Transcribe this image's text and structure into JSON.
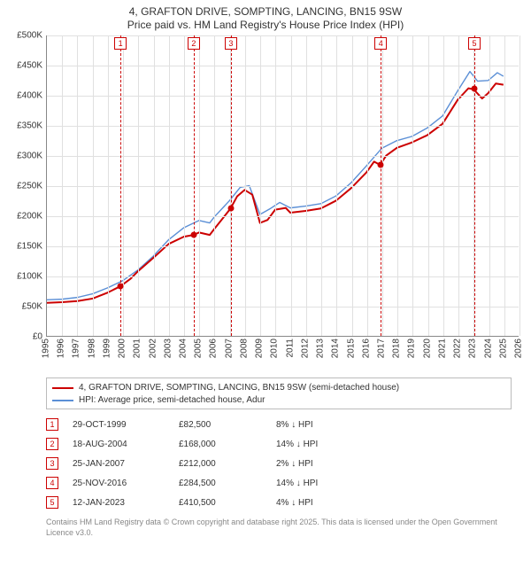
{
  "title_line1": "4, GRAFTON DRIVE, SOMPTING, LANCING, BN15 9SW",
  "title_line2": "Price paid vs. HM Land Registry's House Price Index (HPI)",
  "chart": {
    "x_min": 1995,
    "x_max": 2026,
    "x_ticks": [
      1995,
      1996,
      1997,
      1998,
      1999,
      2000,
      2001,
      2002,
      2003,
      2004,
      2005,
      2006,
      2007,
      2008,
      2009,
      2010,
      2011,
      2012,
      2013,
      2014,
      2015,
      2016,
      2017,
      2018,
      2019,
      2020,
      2021,
      2022,
      2023,
      2024,
      2025,
      2026
    ],
    "y_min": 0,
    "y_max": 500,
    "y_ticks": [
      0,
      50,
      100,
      150,
      200,
      250,
      300,
      350,
      400,
      450,
      500
    ],
    "y_tick_labels": [
      "£0",
      "£50K",
      "£100K",
      "£150K",
      "£200K",
      "£250K",
      "£300K",
      "£350K",
      "£400K",
      "£450K",
      "£500K"
    ],
    "grid_color": "#e0e0e0",
    "axis_color": "#888888",
    "background_color": "#ffffff",
    "series": {
      "property": {
        "color": "#cc0000",
        "width": 2.0,
        "points": [
          [
            1995.0,
            55
          ],
          [
            1996.0,
            56
          ],
          [
            1997.0,
            58
          ],
          [
            1998.0,
            62
          ],
          [
            1999.0,
            72
          ],
          [
            1999.83,
            82.5
          ],
          [
            2000.5,
            95
          ],
          [
            2001.0,
            108
          ],
          [
            2002.0,
            130
          ],
          [
            2003.0,
            153
          ],
          [
            2004.0,
            165
          ],
          [
            2004.63,
            168
          ],
          [
            2005.0,
            172
          ],
          [
            2005.7,
            168
          ],
          [
            2006.0,
            178
          ],
          [
            2006.7,
            200
          ],
          [
            2007.07,
            212
          ],
          [
            2007.5,
            232
          ],
          [
            2008.0,
            243
          ],
          [
            2008.5,
            235
          ],
          [
            2009.0,
            188
          ],
          [
            2009.5,
            193
          ],
          [
            2010.0,
            210
          ],
          [
            2010.7,
            213
          ],
          [
            2011.0,
            205
          ],
          [
            2012.0,
            208
          ],
          [
            2013.0,
            212
          ],
          [
            2014.0,
            225
          ],
          [
            2015.0,
            246
          ],
          [
            2016.0,
            272
          ],
          [
            2016.5,
            290
          ],
          [
            2016.9,
            284.5
          ],
          [
            2017.3,
            300
          ],
          [
            2018.0,
            313
          ],
          [
            2019.0,
            322
          ],
          [
            2020.0,
            334
          ],
          [
            2021.0,
            353
          ],
          [
            2022.0,
            393
          ],
          [
            2022.7,
            412
          ],
          [
            2023.04,
            410.5
          ],
          [
            2023.6,
            395
          ],
          [
            2024.0,
            404
          ],
          [
            2024.5,
            420
          ],
          [
            2025.0,
            418
          ]
        ]
      },
      "hpi": {
        "color": "#5b8fd6",
        "width": 1.4,
        "points": [
          [
            1995.0,
            60
          ],
          [
            1996.0,
            61
          ],
          [
            1997.0,
            64
          ],
          [
            1998.0,
            70
          ],
          [
            1999.0,
            80
          ],
          [
            2000.0,
            92
          ],
          [
            2001.0,
            110
          ],
          [
            2002.0,
            133
          ],
          [
            2003.0,
            160
          ],
          [
            2004.0,
            180
          ],
          [
            2005.0,
            192
          ],
          [
            2005.7,
            188
          ],
          [
            2006.0,
            198
          ],
          [
            2007.0,
            225
          ],
          [
            2007.7,
            247
          ],
          [
            2008.3,
            250
          ],
          [
            2009.0,
            202
          ],
          [
            2009.7,
            212
          ],
          [
            2010.3,
            222
          ],
          [
            2011.0,
            213
          ],
          [
            2012.0,
            216
          ],
          [
            2013.0,
            220
          ],
          [
            2014.0,
            233
          ],
          [
            2015.0,
            255
          ],
          [
            2016.0,
            283
          ],
          [
            2017.0,
            312
          ],
          [
            2018.0,
            325
          ],
          [
            2019.0,
            332
          ],
          [
            2020.0,
            346
          ],
          [
            2021.0,
            366
          ],
          [
            2022.0,
            408
          ],
          [
            2022.8,
            440
          ],
          [
            2023.3,
            424
          ],
          [
            2024.0,
            425
          ],
          [
            2024.6,
            438
          ],
          [
            2025.0,
            432
          ]
        ]
      }
    },
    "markers": [
      {
        "num": "1",
        "x": 1999.83,
        "y": 82.5
      },
      {
        "num": "2",
        "x": 2004.63,
        "y": 168
      },
      {
        "num": "3",
        "x": 2007.07,
        "y": 212
      },
      {
        "num": "4",
        "x": 2016.9,
        "y": 284.5
      },
      {
        "num": "5",
        "x": 2023.04,
        "y": 410.5
      }
    ],
    "marker_color": "#cc0000"
  },
  "legend": {
    "items": [
      {
        "color": "#cc0000",
        "width": 2,
        "label": "4, GRAFTON DRIVE, SOMPTING, LANCING, BN15 9SW (semi-detached house)"
      },
      {
        "color": "#5b8fd6",
        "width": 1.4,
        "label": "HPI: Average price, semi-detached house, Adur"
      }
    ]
  },
  "transactions": [
    {
      "num": "1",
      "date": "29-OCT-1999",
      "price": "£82,500",
      "delta": "8% ↓ HPI"
    },
    {
      "num": "2",
      "date": "18-AUG-2004",
      "price": "£168,000",
      "delta": "14% ↓ HPI"
    },
    {
      "num": "3",
      "date": "25-JAN-2007",
      "price": "£212,000",
      "delta": "2% ↓ HPI"
    },
    {
      "num": "4",
      "date": "25-NOV-2016",
      "price": "£284,500",
      "delta": "14% ↓ HPI"
    },
    {
      "num": "5",
      "date": "12-JAN-2023",
      "price": "£410,500",
      "delta": "4% ↓ HPI"
    }
  ],
  "attribution": "Contains HM Land Registry data © Crown copyright and database right 2025. This data is licensed under the Open Government Licence v3.0."
}
